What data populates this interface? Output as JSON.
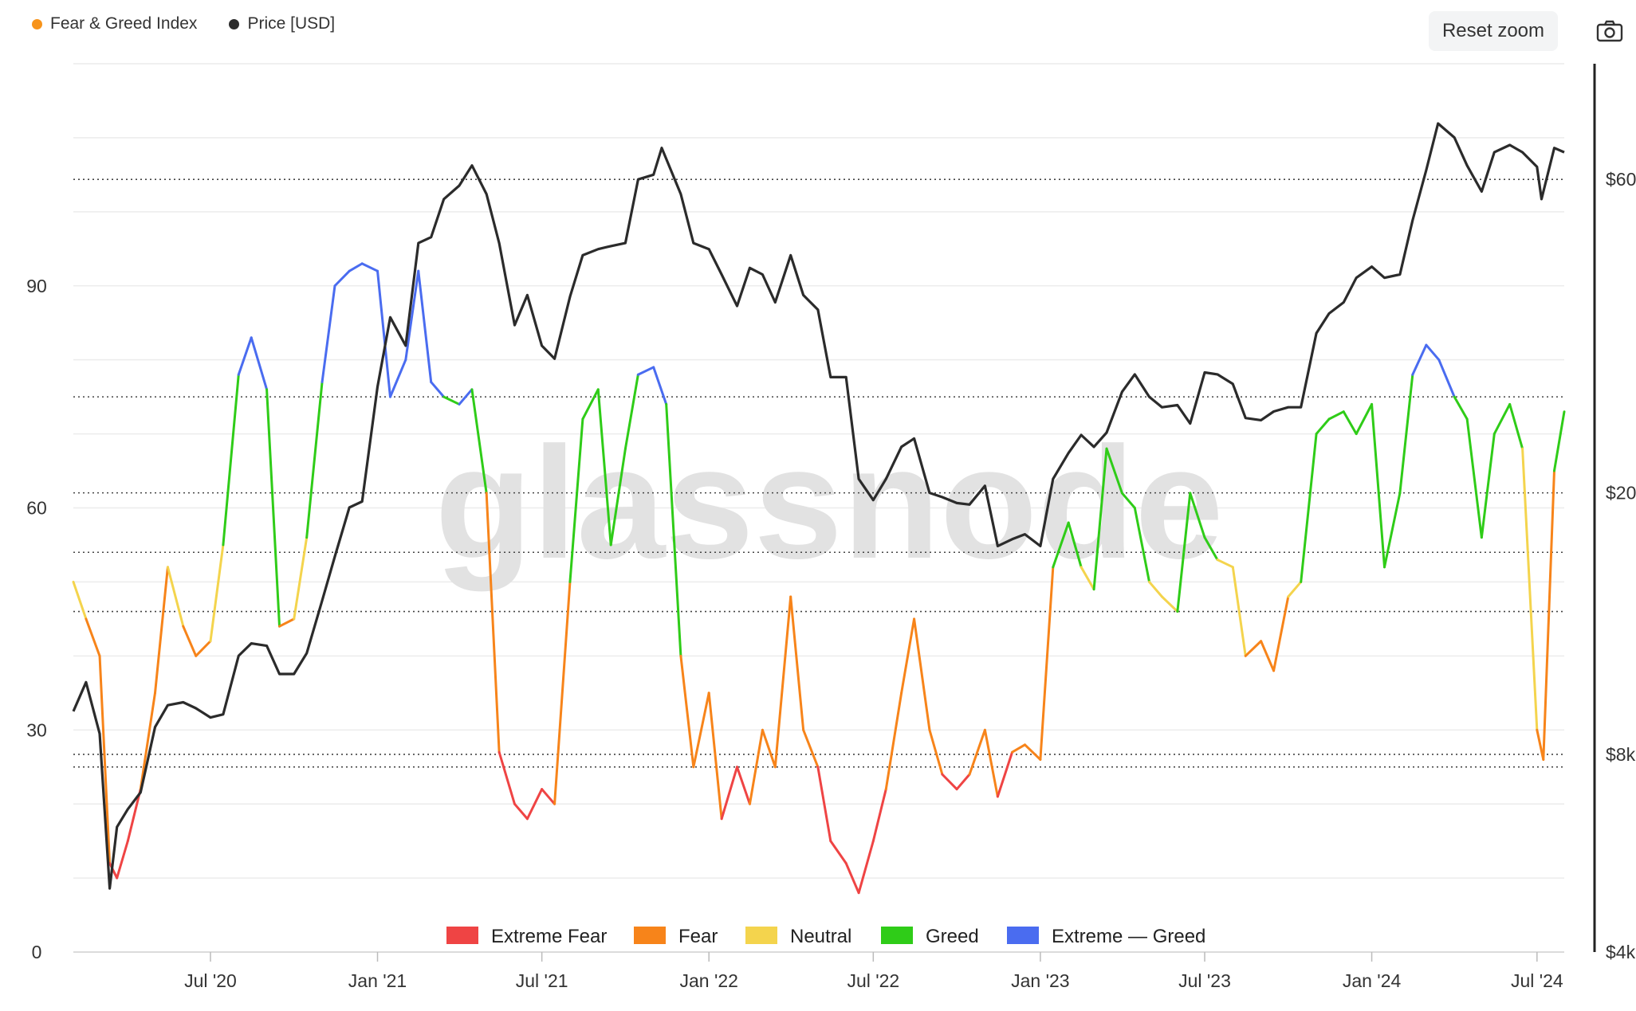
{
  "toolbar": {
    "reset_zoom_label": "Reset zoom",
    "camera_icon": "camera-icon"
  },
  "top_legend": [
    {
      "label": "Fear & Greed Index",
      "color": "#f7931a"
    },
    {
      "label": "Price [USD]",
      "color": "#2b2b2b"
    }
  ],
  "watermark": "glassnode",
  "colors": {
    "extreme_fear": "#ef4444",
    "fear": "#f7841a",
    "neutral": "#f4d44d",
    "greed": "#2fcc18",
    "extreme_greed": "#4a6cf0",
    "price": "#2b2b2b"
  },
  "chart_data": {
    "type": "line",
    "title": "",
    "left_axis": {
      "ticks": [
        0,
        30,
        60,
        90
      ],
      "labels": [
        "0",
        "30",
        "60",
        "90"
      ],
      "ylim": [
        0,
        120
      ]
    },
    "right_axis": {
      "scale": "log",
      "ticks": [
        4000,
        8000,
        20000,
        60000
      ],
      "labels": [
        "$4k",
        "$8k",
        "$20k",
        "$60k"
      ],
      "ylim": [
        4000,
        90000
      ]
    },
    "x_axis": {
      "labels": [
        "Jul '20",
        "Jan '21",
        "Jul '21",
        "Jan '22",
        "Jul '22",
        "Jan '23",
        "Jul '23",
        "Jan '24",
        "Jul '24"
      ],
      "range": [
        "2020-02-01",
        "2024-07-31"
      ]
    },
    "thresholds": [
      25,
      46,
      54,
      75
    ],
    "zone_legend": [
      {
        "label": "Extreme Fear",
        "color": "#ef4444"
      },
      {
        "label": "Fear",
        "color": "#f7841a"
      },
      {
        "label": "Neutral",
        "color": "#f4d44d"
      },
      {
        "label": "Greed",
        "color": "#2fcc18"
      },
      {
        "label": "Extreme — Greed",
        "color": "#4a6cf0"
      }
    ],
    "series": [
      {
        "name": "Fear & Greed Index",
        "points": [
          [
            "2020-02-01",
            50
          ],
          [
            "2020-02-15",
            45
          ],
          [
            "2020-03-01",
            40
          ],
          [
            "2020-03-12",
            12
          ],
          [
            "2020-03-20",
            10
          ],
          [
            "2020-04-01",
            15
          ],
          [
            "2020-04-15",
            22
          ],
          [
            "2020-05-01",
            35
          ],
          [
            "2020-05-15",
            52
          ],
          [
            "2020-06-01",
            44
          ],
          [
            "2020-06-15",
            40
          ],
          [
            "2020-07-01",
            42
          ],
          [
            "2020-07-15",
            55
          ],
          [
            "2020-08-01",
            78
          ],
          [
            "2020-08-15",
            83
          ],
          [
            "2020-09-01",
            76
          ],
          [
            "2020-09-15",
            44
          ],
          [
            "2020-10-01",
            45
          ],
          [
            "2020-10-15",
            56
          ],
          [
            "2020-11-01",
            77
          ],
          [
            "2020-11-15",
            90
          ],
          [
            "2020-12-01",
            92
          ],
          [
            "2020-12-15",
            93
          ],
          [
            "2021-01-01",
            92
          ],
          [
            "2021-01-15",
            75
          ],
          [
            "2021-02-01",
            80
          ],
          [
            "2021-02-15",
            92
          ],
          [
            "2021-03-01",
            77
          ],
          [
            "2021-03-15",
            75
          ],
          [
            "2021-04-01",
            74
          ],
          [
            "2021-04-15",
            76
          ],
          [
            "2021-05-01",
            62
          ],
          [
            "2021-05-15",
            27
          ],
          [
            "2021-06-01",
            20
          ],
          [
            "2021-06-15",
            18
          ],
          [
            "2021-07-01",
            22
          ],
          [
            "2021-07-15",
            20
          ],
          [
            "2021-08-01",
            50
          ],
          [
            "2021-08-15",
            72
          ],
          [
            "2021-09-01",
            76
          ],
          [
            "2021-09-15",
            55
          ],
          [
            "2021-10-01",
            68
          ],
          [
            "2021-10-15",
            78
          ],
          [
            "2021-11-01",
            79
          ],
          [
            "2021-11-15",
            74
          ],
          [
            "2021-12-01",
            40
          ],
          [
            "2021-12-15",
            25
          ],
          [
            "2022-01-01",
            35
          ],
          [
            "2022-01-15",
            18
          ],
          [
            "2022-02-01",
            25
          ],
          [
            "2022-02-15",
            20
          ],
          [
            "2022-03-01",
            30
          ],
          [
            "2022-03-15",
            25
          ],
          [
            "2022-04-01",
            48
          ],
          [
            "2022-04-15",
            30
          ],
          [
            "2022-05-01",
            25
          ],
          [
            "2022-05-15",
            15
          ],
          [
            "2022-06-01",
            12
          ],
          [
            "2022-06-15",
            8
          ],
          [
            "2022-07-01",
            15
          ],
          [
            "2022-07-15",
            22
          ],
          [
            "2022-08-01",
            35
          ],
          [
            "2022-08-15",
            45
          ],
          [
            "2022-09-01",
            30
          ],
          [
            "2022-09-15",
            24
          ],
          [
            "2022-10-01",
            22
          ],
          [
            "2022-10-15",
            24
          ],
          [
            "2022-11-01",
            30
          ],
          [
            "2022-11-15",
            21
          ],
          [
            "2022-12-01",
            27
          ],
          [
            "2022-12-15",
            28
          ],
          [
            "2023-01-01",
            26
          ],
          [
            "2023-01-15",
            52
          ],
          [
            "2023-02-01",
            58
          ],
          [
            "2023-02-15",
            52
          ],
          [
            "2023-03-01",
            49
          ],
          [
            "2023-03-15",
            68
          ],
          [
            "2023-04-01",
            62
          ],
          [
            "2023-04-15",
            60
          ],
          [
            "2023-05-01",
            50
          ],
          [
            "2023-05-15",
            48
          ],
          [
            "2023-06-01",
            46
          ],
          [
            "2023-06-15",
            62
          ],
          [
            "2023-07-01",
            56
          ],
          [
            "2023-07-15",
            53
          ],
          [
            "2023-08-01",
            52
          ],
          [
            "2023-08-15",
            40
          ],
          [
            "2023-09-01",
            42
          ],
          [
            "2023-09-15",
            38
          ],
          [
            "2023-10-01",
            48
          ],
          [
            "2023-10-15",
            50
          ],
          [
            "2023-11-01",
            70
          ],
          [
            "2023-11-15",
            72
          ],
          [
            "2023-12-01",
            73
          ],
          [
            "2023-12-15",
            70
          ],
          [
            "2024-01-01",
            74
          ],
          [
            "2024-01-15",
            52
          ],
          [
            "2024-02-01",
            62
          ],
          [
            "2024-02-15",
            78
          ],
          [
            "2024-03-01",
            82
          ],
          [
            "2024-03-15",
            80
          ],
          [
            "2024-04-01",
            75
          ],
          [
            "2024-04-15",
            72
          ],
          [
            "2024-05-01",
            56
          ],
          [
            "2024-05-15",
            70
          ],
          [
            "2024-06-01",
            74
          ],
          [
            "2024-06-15",
            68
          ],
          [
            "2024-07-01",
            30
          ],
          [
            "2024-07-08",
            26
          ],
          [
            "2024-07-20",
            65
          ],
          [
            "2024-07-31",
            73
          ]
        ]
      },
      {
        "name": "Price [USD]",
        "points": [
          [
            "2020-02-01",
            9300
          ],
          [
            "2020-02-15",
            10300
          ],
          [
            "2020-03-01",
            8600
          ],
          [
            "2020-03-12",
            5000
          ],
          [
            "2020-03-20",
            6200
          ],
          [
            "2020-04-01",
            6600
          ],
          [
            "2020-04-15",
            7000
          ],
          [
            "2020-05-01",
            8800
          ],
          [
            "2020-05-15",
            9500
          ],
          [
            "2020-06-01",
            9600
          ],
          [
            "2020-06-15",
            9400
          ],
          [
            "2020-07-01",
            9100
          ],
          [
            "2020-07-15",
            9200
          ],
          [
            "2020-08-01",
            11300
          ],
          [
            "2020-08-15",
            11800
          ],
          [
            "2020-09-01",
            11700
          ],
          [
            "2020-09-15",
            10600
          ],
          [
            "2020-10-01",
            10600
          ],
          [
            "2020-10-15",
            11400
          ],
          [
            "2020-11-01",
            13700
          ],
          [
            "2020-11-15",
            16000
          ],
          [
            "2020-12-01",
            19000
          ],
          [
            "2020-12-15",
            19400
          ],
          [
            "2021-01-01",
            29000
          ],
          [
            "2021-01-15",
            37000
          ],
          [
            "2021-02-01",
            33500
          ],
          [
            "2021-02-15",
            48000
          ],
          [
            "2021-03-01",
            49000
          ],
          [
            "2021-03-15",
            56000
          ],
          [
            "2021-04-01",
            58700
          ],
          [
            "2021-04-15",
            63000
          ],
          [
            "2021-05-01",
            57000
          ],
          [
            "2021-05-15",
            48000
          ],
          [
            "2021-06-01",
            36000
          ],
          [
            "2021-06-15",
            40000
          ],
          [
            "2021-07-01",
            33500
          ],
          [
            "2021-07-15",
            32000
          ],
          [
            "2021-08-01",
            39800
          ],
          [
            "2021-08-15",
            46000
          ],
          [
            "2021-09-01",
            47000
          ],
          [
            "2021-09-15",
            47500
          ],
          [
            "2021-10-01",
            48000
          ],
          [
            "2021-10-15",
            60000
          ],
          [
            "2021-11-01",
            61000
          ],
          [
            "2021-11-10",
            67000
          ],
          [
            "2021-12-01",
            57000
          ],
          [
            "2021-12-15",
            48000
          ],
          [
            "2022-01-01",
            47000
          ],
          [
            "2022-01-15",
            43000
          ],
          [
            "2022-02-01",
            38500
          ],
          [
            "2022-02-15",
            44000
          ],
          [
            "2022-03-01",
            43000
          ],
          [
            "2022-03-15",
            39000
          ],
          [
            "2022-04-01",
            46000
          ],
          [
            "2022-04-15",
            40000
          ],
          [
            "2022-05-01",
            38000
          ],
          [
            "2022-05-15",
            30000
          ],
          [
            "2022-06-01",
            30000
          ],
          [
            "2022-06-15",
            21000
          ],
          [
            "2022-07-01",
            19500
          ],
          [
            "2022-07-15",
            21000
          ],
          [
            "2022-08-01",
            23500
          ],
          [
            "2022-08-15",
            24200
          ],
          [
            "2022-09-01",
            20000
          ],
          [
            "2022-09-15",
            19700
          ],
          [
            "2022-10-01",
            19300
          ],
          [
            "2022-10-15",
            19200
          ],
          [
            "2022-11-01",
            20500
          ],
          [
            "2022-11-15",
            16600
          ],
          [
            "2022-12-01",
            17000
          ],
          [
            "2022-12-15",
            17300
          ],
          [
            "2023-01-01",
            16600
          ],
          [
            "2023-01-15",
            21000
          ],
          [
            "2023-02-01",
            23000
          ],
          [
            "2023-02-15",
            24500
          ],
          [
            "2023-03-01",
            23500
          ],
          [
            "2023-03-15",
            24700
          ],
          [
            "2023-04-01",
            28500
          ],
          [
            "2023-04-15",
            30300
          ],
          [
            "2023-05-01",
            28000
          ],
          [
            "2023-05-15",
            27000
          ],
          [
            "2023-06-01",
            27200
          ],
          [
            "2023-06-15",
            25500
          ],
          [
            "2023-07-01",
            30500
          ],
          [
            "2023-07-15",
            30300
          ],
          [
            "2023-08-01",
            29300
          ],
          [
            "2023-08-15",
            26000
          ],
          [
            "2023-09-01",
            25800
          ],
          [
            "2023-09-15",
            26600
          ],
          [
            "2023-10-01",
            27000
          ],
          [
            "2023-10-15",
            27000
          ],
          [
            "2023-11-01",
            35000
          ],
          [
            "2023-11-15",
            37500
          ],
          [
            "2023-12-01",
            39000
          ],
          [
            "2023-12-15",
            42500
          ],
          [
            "2024-01-01",
            44200
          ],
          [
            "2024-01-15",
            42500
          ],
          [
            "2024-02-01",
            43000
          ],
          [
            "2024-02-15",
            52000
          ],
          [
            "2024-03-01",
            62000
          ],
          [
            "2024-03-14",
            73000
          ],
          [
            "2024-04-01",
            69500
          ],
          [
            "2024-04-15",
            63000
          ],
          [
            "2024-05-01",
            57500
          ],
          [
            "2024-05-15",
            66000
          ],
          [
            "2024-06-01",
            67700
          ],
          [
            "2024-06-15",
            66000
          ],
          [
            "2024-07-01",
            62700
          ],
          [
            "2024-07-06",
            56000
          ],
          [
            "2024-07-20",
            67000
          ],
          [
            "2024-07-31",
            66000
          ]
        ]
      }
    ]
  }
}
